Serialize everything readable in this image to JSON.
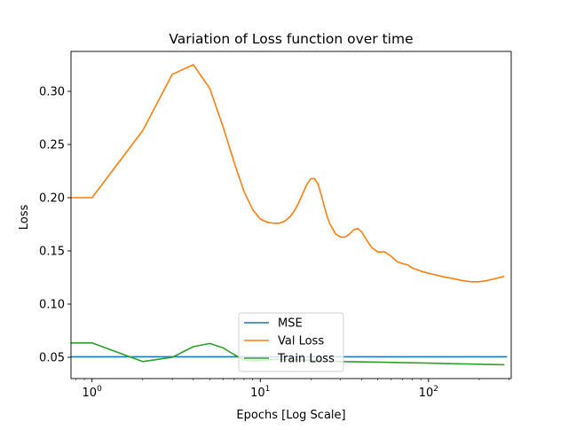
{
  "chart_data": {
    "type": "line",
    "title": "Variation of Loss function over time",
    "xlabel": "Epochs [Log Scale]",
    "ylabel": "Loss",
    "xscale": "log",
    "xlim": [
      0.75,
      310
    ],
    "ylim": [
      0.03,
      0.3375
    ],
    "x_ticks": [
      {
        "value": 1,
        "base": "10",
        "exp": "0"
      },
      {
        "value": 10,
        "base": "10",
        "exp": "1"
      },
      {
        "value": 100,
        "base": "10",
        "exp": "2"
      }
    ],
    "y_ticks": [
      {
        "value": 0.05,
        "label": "0.05"
      },
      {
        "value": 0.1,
        "label": "0.10"
      },
      {
        "value": 0.15,
        "label": "0.15"
      },
      {
        "value": 0.2,
        "label": "0.20"
      },
      {
        "value": 0.25,
        "label": "0.25"
      },
      {
        "value": 0.3,
        "label": "0.30"
      }
    ],
    "grid": false,
    "legend_position": "lower-center",
    "series": [
      {
        "name": "MSE",
        "color": "#1f77b4",
        "x": [
          0.75,
          290
        ],
        "y": [
          0.0505,
          0.0505
        ]
      },
      {
        "name": "Val Loss",
        "color": "#ff7f0e",
        "x": [
          0.75,
          1,
          2,
          3,
          4,
          5,
          6,
          7,
          8,
          9,
          10,
          11,
          12,
          13,
          14,
          15,
          16,
          17,
          18,
          19,
          20,
          21,
          22,
          23,
          24,
          25,
          26,
          28,
          30,
          32,
          34,
          36,
          38,
          40,
          43,
          46,
          50,
          55,
          60,
          65,
          70,
          75,
          80,
          90,
          100,
          120,
          140,
          160,
          180,
          200,
          220,
          250,
          280
        ],
        "y": [
          0.2,
          0.2,
          0.263,
          0.316,
          0.325,
          0.303,
          0.267,
          0.233,
          0.206,
          0.189,
          0.18,
          0.177,
          0.176,
          0.176,
          0.178,
          0.182,
          0.188,
          0.196,
          0.205,
          0.213,
          0.218,
          0.218,
          0.213,
          0.203,
          0.192,
          0.182,
          0.175,
          0.166,
          0.163,
          0.163,
          0.166,
          0.17,
          0.171,
          0.168,
          0.16,
          0.153,
          0.149,
          0.149,
          0.145,
          0.14,
          0.138,
          0.137,
          0.134,
          0.131,
          0.129,
          0.126,
          0.124,
          0.122,
          0.121,
          0.121,
          0.122,
          0.124,
          0.126
        ]
      },
      {
        "name": "Train Loss",
        "color": "#2ca02c",
        "x": [
          0.75,
          1,
          2,
          3,
          4,
          5,
          6,
          7,
          8,
          9,
          10,
          12,
          15,
          20,
          30,
          50,
          100,
          200,
          280
        ],
        "y": [
          0.0635,
          0.0635,
          0.046,
          0.05,
          0.06,
          0.063,
          0.059,
          0.0525,
          0.0475,
          0.0465,
          0.047,
          0.048,
          0.048,
          0.047,
          0.046,
          0.0455,
          0.0445,
          0.0435,
          0.043
        ]
      }
    ]
  }
}
